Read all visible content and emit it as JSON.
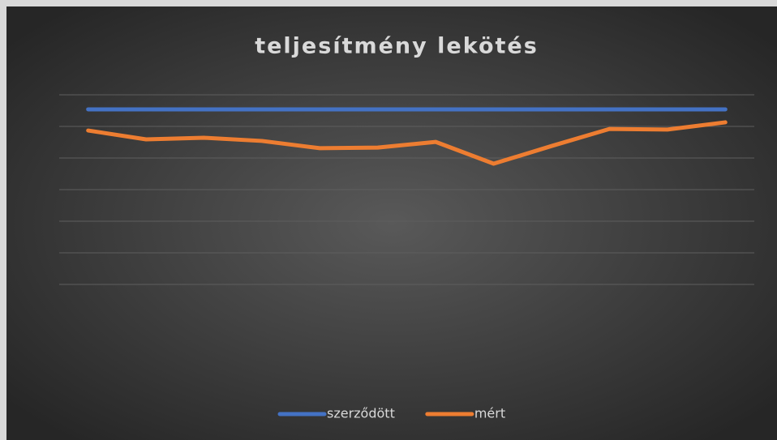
{
  "chart_data": {
    "type": "line",
    "title": "teljesítmény lekötés",
    "categories": [
      null,
      null,
      null,
      null,
      null,
      null,
      null,
      null,
      null,
      null,
      null,
      null
    ],
    "series": [
      {
        "name": "szerződött",
        "color": "#4472c4",
        "values": [
          5.54,
          5.54,
          5.54,
          5.54,
          5.54,
          5.54,
          5.54,
          5.54,
          5.54,
          5.54,
          5.54,
          5.54
        ]
      },
      {
        "name": "mért",
        "color": "#ed7d31",
        "values": [
          4.87,
          4.59,
          4.64,
          4.54,
          4.31,
          4.33,
          4.51,
          3.82,
          4.38,
          4.92,
          4.9,
          5.13
        ]
      }
    ],
    "ylim": [
      0,
      6
    ],
    "yticks": [
      0,
      1,
      2,
      3,
      4,
      5,
      6
    ],
    "grid": true,
    "legend": "bottom"
  }
}
